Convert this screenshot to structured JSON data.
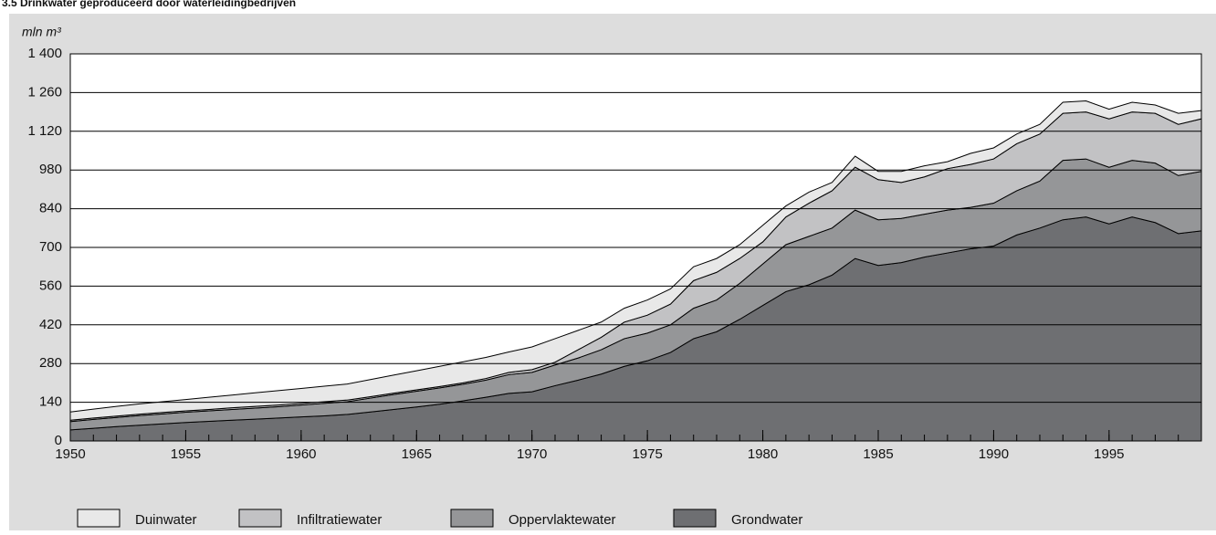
{
  "chart_data": {
    "type": "stacked_area",
    "title": "3.5 Drinkwater geproduceerd door waterleidingbedrijven",
    "y_label": "mln m³",
    "x": [
      1950,
      1951,
      1952,
      1953,
      1954,
      1955,
      1956,
      1957,
      1958,
      1959,
      1960,
      1961,
      1962,
      1963,
      1964,
      1965,
      1966,
      1967,
      1968,
      1969,
      1970,
      1971,
      1972,
      1973,
      1974,
      1975,
      1976,
      1977,
      1978,
      1979,
      1980,
      1981,
      1982,
      1983,
      1984,
      1985,
      1986,
      1987,
      1988,
      1989,
      1990,
      1991,
      1992,
      1993,
      1994,
      1995,
      1996,
      1997,
      1998,
      1999
    ],
    "series": [
      {
        "name": "Duinwater",
        "color": "#e8e8e8",
        "values": [
          30,
          32,
          35,
          37,
          39,
          41,
          44,
          46,
          49,
          52,
          54,
          56,
          58,
          62,
          65,
          69,
          73,
          76,
          76,
          74,
          82,
          85,
          70,
          55,
          50,
          55,
          55,
          50,
          50,
          50,
          60,
          40,
          40,
          30,
          40,
          30,
          40,
          40,
          25,
          40,
          40,
          35,
          35,
          40,
          40,
          35,
          35,
          30,
          40,
          30
        ]
      },
      {
        "name": "Infiltratiewater",
        "color": "#c2c2c4",
        "values": [
          5,
          5,
          5,
          5,
          5,
          5,
          5,
          6,
          6,
          6,
          6,
          6,
          6,
          5,
          5,
          5,
          5,
          5,
          6,
          8,
          10,
          10,
          30,
          45,
          60,
          65,
          75,
          100,
          100,
          90,
          80,
          100,
          120,
          135,
          155,
          145,
          130,
          135,
          150,
          155,
          160,
          170,
          170,
          170,
          170,
          175,
          175,
          180,
          185,
          190
        ]
      },
      {
        "name": "Oppervlaktewater",
        "color": "#959698",
        "values": [
          30,
          32,
          33,
          35,
          36,
          37,
          38,
          39,
          40,
          41,
          43,
          45,
          46,
          50,
          54,
          57,
          59,
          60,
          62,
          68,
          70,
          75,
          80,
          88,
          100,
          100,
          100,
          110,
          115,
          130,
          150,
          170,
          175,
          170,
          175,
          165,
          160,
          155,
          155,
          150,
          155,
          160,
          170,
          215,
          210,
          205,
          205,
          215,
          210,
          215
        ]
      },
      {
        "name": "Grondwater",
        "color": "#6e6f72",
        "values": [
          40,
          46,
          52,
          57,
          62,
          67,
          71,
          75,
          79,
          83,
          87,
          91,
          96,
          105,
          114,
          123,
          133,
          145,
          158,
          172,
          178,
          200,
          220,
          242,
          270,
          290,
          320,
          370,
          395,
          440,
          490,
          540,
          565,
          600,
          660,
          635,
          645,
          665,
          680,
          695,
          705,
          745,
          770,
          800,
          810,
          785,
          810,
          790,
          750,
          760
        ]
      }
    ],
    "xlim": [
      1950,
      1999
    ],
    "xticks": [
      1950,
      1955,
      1960,
      1965,
      1970,
      1975,
      1980,
      1985,
      1990,
      1995
    ],
    "ylim": [
      0,
      1400
    ],
    "yticks": [
      0,
      140,
      280,
      420,
      560,
      700,
      840,
      980,
      {
        "value": 1120,
        "label": "1 120"
      },
      {
        "value": 1260,
        "label": "1 260"
      },
      {
        "value": 1400,
        "label": "1 400"
      }
    ],
    "grid": true
  }
}
